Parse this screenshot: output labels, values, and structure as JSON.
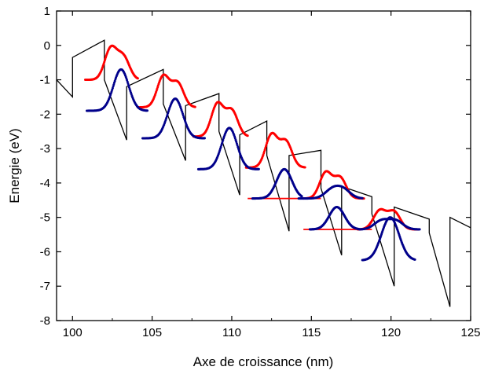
{
  "chart_data": {
    "type": "line",
    "title": "",
    "xlabel": "Axe de croissance (nm)",
    "ylabel": "Energie (eV)",
    "xlim": [
      99,
      125
    ],
    "ylim": [
      -8,
      1
    ],
    "xticks": [
      100,
      105,
      110,
      115,
      120,
      125
    ],
    "yticks": [
      1,
      0,
      -1,
      -2,
      -3,
      -4,
      -5,
      -6,
      -7,
      -8
    ],
    "grid": false,
    "legend": "none",
    "colors": {
      "potential": "#000000",
      "electron_wavefunction": "#ff0000",
      "hole_wavefunction": "#00008b"
    },
    "potential_profile": [
      [
        99,
        -1.0
      ],
      [
        100,
        -1.5
      ],
      [
        100,
        -0.35
      ],
      [
        102,
        0.15
      ],
      [
        102,
        -1.0
      ],
      [
        103.4,
        -2.75
      ],
      [
        103.4,
        -1.2
      ],
      [
        105.7,
        -0.7
      ],
      [
        105.7,
        -1.7
      ],
      [
        107.1,
        -3.35
      ],
      [
        107.1,
        -1.75
      ],
      [
        109.2,
        -1.4
      ],
      [
        109.2,
        -2.5
      ],
      [
        110.5,
        -4.35
      ],
      [
        110.5,
        -2.6
      ],
      [
        112.2,
        -2.2
      ],
      [
        112.2,
        -3.2
      ],
      [
        113.6,
        -5.4
      ],
      [
        113.6,
        -3.2
      ],
      [
        115.6,
        -3.05
      ],
      [
        115.6,
        -4.15
      ],
      [
        116.9,
        -6.1
      ],
      [
        116.9,
        -4.1
      ],
      [
        118.8,
        -4.4
      ],
      [
        118.8,
        -4.9
      ],
      [
        120.2,
        -7.0
      ],
      [
        120.2,
        -4.7
      ],
      [
        122.4,
        -5.05
      ],
      [
        122.4,
        -5.45
      ],
      [
        123.7,
        -7.6
      ],
      [
        123.7,
        -5.0
      ],
      [
        125,
        -5.3
      ]
    ],
    "electron_states": [
      {
        "x_start": 100.8,
        "x_end": 104.1,
        "baseline": -1.0,
        "peaks": [
          {
            "x": 102.4,
            "height": 0.9,
            "width": 0.38
          },
          {
            "x": 103.2,
            "height": 0.65,
            "width": 0.38
          }
        ]
      },
      {
        "x_start": 104.1,
        "x_end": 107.7,
        "baseline": -1.8,
        "peaks": [
          {
            "x": 105.7,
            "height": 0.9,
            "width": 0.38
          },
          {
            "x": 106.6,
            "height": 0.7,
            "width": 0.38
          }
        ]
      },
      {
        "x_start": 107.6,
        "x_end": 111.0,
        "baseline": -2.65,
        "peaks": [
          {
            "x": 109.1,
            "height": 0.95,
            "width": 0.38
          },
          {
            "x": 110.0,
            "height": 0.75,
            "width": 0.38
          }
        ]
      },
      {
        "x_start": 110.9,
        "x_end": 114.6,
        "baseline": -3.55,
        "peaks": [
          {
            "x": 112.5,
            "height": 0.95,
            "width": 0.38
          },
          {
            "x": 113.4,
            "height": 0.75,
            "width": 0.38
          }
        ]
      },
      {
        "x_start": 114.5,
        "x_end": 118.3,
        "baseline": -4.45,
        "peaks": [
          {
            "x": 115.9,
            "height": 0.75,
            "width": 0.38
          },
          {
            "x": 116.8,
            "height": 0.6,
            "width": 0.38
          }
        ]
      },
      {
        "x_start": 117.9,
        "x_end": 121.7,
        "baseline": -5.35,
        "peaks": [
          {
            "x": 119.3,
            "height": 0.55,
            "width": 0.4
          },
          {
            "x": 120.2,
            "height": 0.5,
            "width": 0.38
          }
        ]
      }
    ],
    "red_flat_levels": [
      {
        "x_start": 111.0,
        "x_end": 115.6,
        "y": -4.45
      },
      {
        "x_start": 114.5,
        "x_end": 118.8,
        "y": -5.35
      }
    ],
    "hole_states": [
      {
        "x_start": 100.9,
        "x_end": 104.7,
        "baseline": -1.9,
        "peak_x": 103.05,
        "height": 1.2,
        "width": 0.48
      },
      {
        "x_start": 104.4,
        "x_end": 108.3,
        "baseline": -2.7,
        "peak_x": 106.45,
        "height": 1.15,
        "width": 0.48
      },
      {
        "x_start": 107.9,
        "x_end": 111.7,
        "baseline": -3.6,
        "peak_x": 109.85,
        "height": 1.2,
        "width": 0.48
      },
      {
        "x_start": 111.3,
        "x_end": 114.4,
        "baseline": -4.45,
        "peak_x": 113.3,
        "height": 0.85,
        "width": 0.48
      },
      {
        "x_start": 114.9,
        "x_end": 118.0,
        "baseline": -5.35,
        "peak_x": 116.6,
        "height": 0.65,
        "width": 0.48
      },
      {
        "x_start": 118.2,
        "x_end": 121.5,
        "baseline": -6.25,
        "peak_x": 119.95,
        "height": 1.25,
        "width": 0.55
      }
    ],
    "hole_small_bumps": [
      {
        "x_start": 114.2,
        "x_end": 118.2,
        "baseline": -4.45,
        "peaks": [
          {
            "x": 116.3,
            "height": 0.25,
            "width": 0.45
          },
          {
            "x": 117.0,
            "height": 0.25,
            "width": 0.45
          }
        ]
      },
      {
        "x_start": 118.0,
        "x_end": 121.8,
        "baseline": -5.35,
        "peaks": [
          {
            "x": 119.4,
            "height": 0.25,
            "width": 0.45
          },
          {
            "x": 120.3,
            "height": 0.25,
            "width": 0.45
          }
        ]
      }
    ]
  }
}
